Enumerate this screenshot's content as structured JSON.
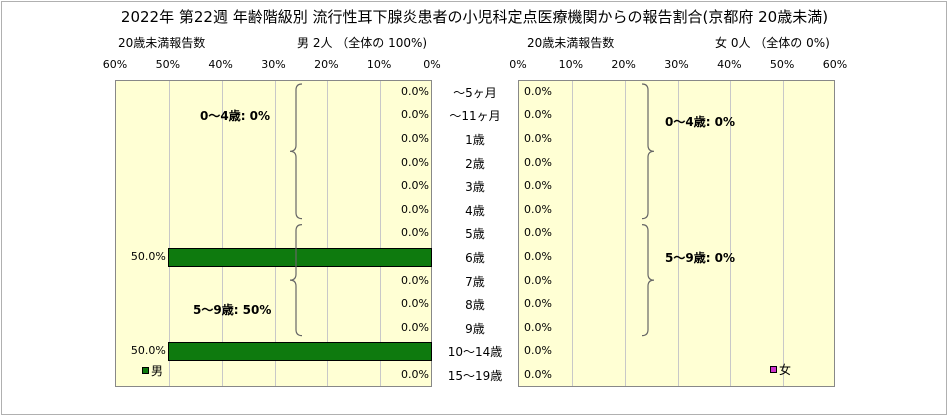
{
  "title": "2022年 第22週 年齢階級別 流行性耳下腺炎患者の小児科定点医療機関からの報告割合(京都府 20歳未満)",
  "left_header": {
    "caption": "20歳未満報告数",
    "summary": "男  2人 （全体の  100%)"
  },
  "right_header": {
    "caption": "20歳未満報告数",
    "summary": "女  0人 （全体の  0%)"
  },
  "left_ticks": [
    "60%",
    "50%",
    "40%",
    "30%",
    "20%",
    "10%",
    "0%"
  ],
  "right_ticks": [
    "0%",
    "10%",
    "20%",
    "30%",
    "40%",
    "50%",
    "60%"
  ],
  "brace_labels": {
    "male_0_4": "0～4歳: 0%",
    "male_5_9": "5～9歳: 50%",
    "female_0_4": "0～4歳: 0%",
    "female_5_9": "5～9歳: 0%"
  },
  "legend": {
    "male": "男",
    "female": "女"
  },
  "colors": {
    "male": "#0e7a0e",
    "female": "#cc33cc",
    "plot_bg": "#ffffd4"
  },
  "chart_data": {
    "type": "bar",
    "orientation": "horizontal-population-pyramid",
    "categories": [
      "～5ヶ月",
      "～11ヶ月",
      "1歳",
      "2歳",
      "3歳",
      "4歳",
      "5歳",
      "6歳",
      "7歳",
      "8歳",
      "9歳",
      "10～14歳",
      "15～19歳"
    ],
    "series": [
      {
        "name": "男",
        "values": [
          0,
          0,
          0,
          0,
          0,
          0,
          0,
          50,
          0,
          0,
          0,
          50,
          0
        ],
        "labels": [
          "0.0%",
          "0.0%",
          "0.0%",
          "0.0%",
          "0.0%",
          "0.0%",
          "0.0%",
          "50.0%",
          "0.0%",
          "0.0%",
          "0.0%",
          "50.0%",
          "0.0%"
        ]
      },
      {
        "name": "女",
        "values": [
          0,
          0,
          0,
          0,
          0,
          0,
          0,
          0,
          0,
          0,
          0,
          0,
          0
        ],
        "labels": [
          "0.0%",
          "0.0%",
          "0.0%",
          "0.0%",
          "0.0%",
          "0.0%",
          "0.0%",
          "0.0%",
          "0.0%",
          "0.0%",
          "0.0%",
          "0.0%",
          "0.0%"
        ]
      }
    ],
    "xlim": [
      0,
      60
    ],
    "xunit": "%"
  }
}
